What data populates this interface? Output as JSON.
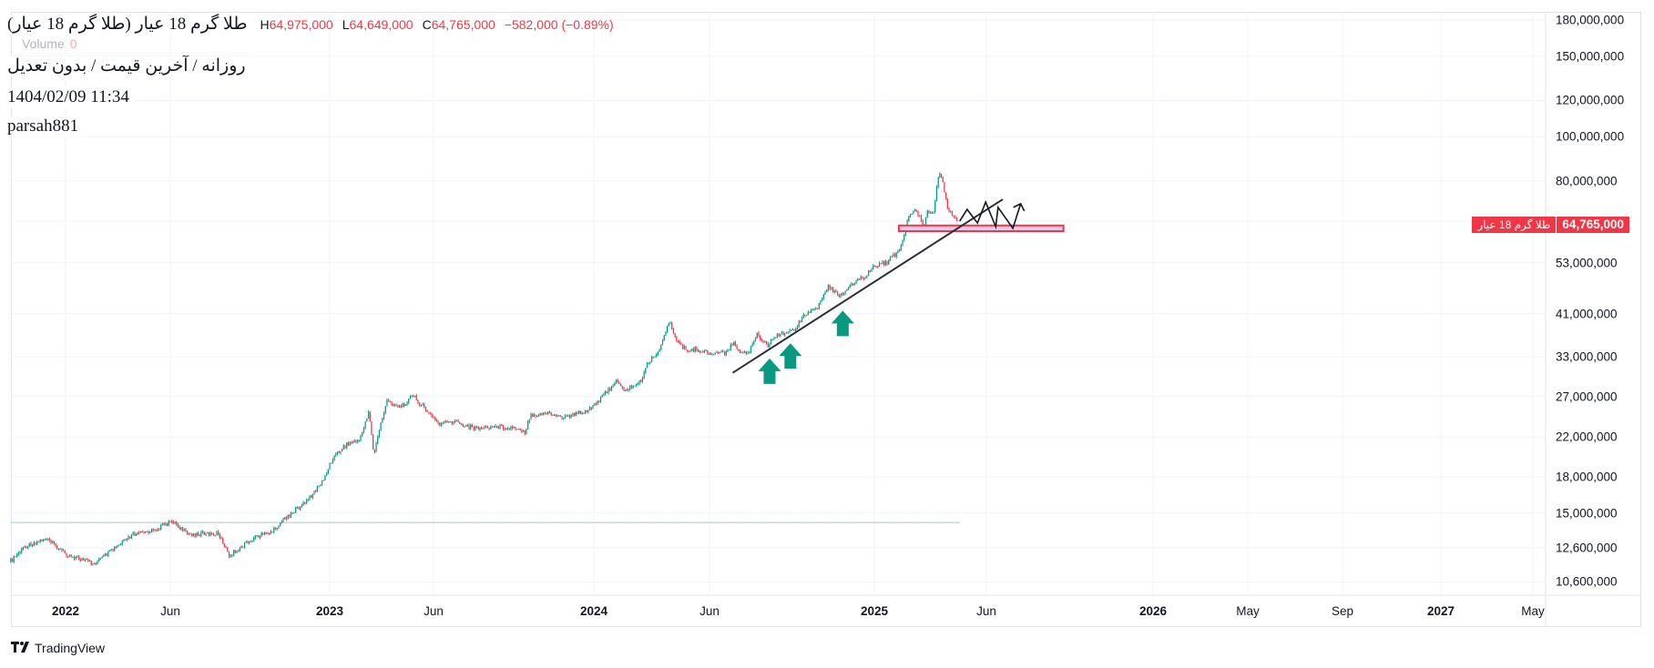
{
  "legend": {
    "title": "طلا گرم 18 عیار (طلا گرم 18 عیار)",
    "ohlc": {
      "h_label": "H",
      "h": "64,975,000",
      "l_label": "L",
      "l": "64,649,000",
      "c_label": "C",
      "c": "64,765,000",
      "change": "−582,000 (−0.89%)"
    },
    "volume_label": "Volume",
    "volume_value": "0",
    "subtitle": "روزانه / آخرین قیمت / بدون تعدیل",
    "datetime": "1404/02/09 11:34",
    "author": "parsah881"
  },
  "price_tag": {
    "name": "طلا گرم 18 عیار",
    "value": "64,765,000",
    "color": "#f23645"
  },
  "branding": {
    "text": "TradingView"
  },
  "colors": {
    "up": "#089981",
    "down": "#f23645",
    "grid": "#f0f3fa",
    "drawing": "#2a2e39",
    "zone_fill": "#e9c9ea",
    "zone_border": "#f23645"
  },
  "chart_data": {
    "type": "candlestick",
    "scale": "log",
    "ylim": [
      10600000,
      180000000
    ],
    "y_ticks": [
      "180,000,000",
      "150,000,000",
      "120,000,000",
      "100,000,000",
      "80,000,000",
      "53,000,000",
      "41,000,000",
      "33,000,000",
      "27,000,000",
      "22,000,000",
      "18,000,000",
      "15,000,000",
      "12,600,000",
      "10,600,000"
    ],
    "y_tick_values": [
      180000000,
      150000000,
      120000000,
      100000000,
      80000000,
      53000000,
      41000000,
      33000000,
      27000000,
      22000000,
      18000000,
      15000000,
      12600000,
      10600000
    ],
    "x_ticks": [
      {
        "label": "2022",
        "date": "2022-01-01",
        "year": true
      },
      {
        "label": "Jun",
        "date": "2022-06-01"
      },
      {
        "label": "2023",
        "date": "2023-01-01",
        "year": true
      },
      {
        "label": "Jun",
        "date": "2023-06-01"
      },
      {
        "label": "2024",
        "date": "2024-01-01",
        "year": true
      },
      {
        "label": "Jun",
        "date": "2024-06-01"
      },
      {
        "label": "2025",
        "date": "2025-01-01",
        "year": true
      },
      {
        "label": "Jun",
        "date": "2025-06-01"
      },
      {
        "label": "2026",
        "date": "2026-01-01",
        "year": true
      },
      {
        "label": "May",
        "date": "2026-05-01"
      },
      {
        "label": "Sep",
        "date": "2026-09-01"
      },
      {
        "label": "2027",
        "date": "2027-01-01",
        "year": true
      },
      {
        "label": "May",
        "date": "2027-05-01"
      }
    ],
    "grid": true,
    "price_path": [
      [
        "2021-10-14",
        11750000
      ],
      [
        "2021-11-04",
        12700000
      ],
      [
        "2021-12-03",
        13200000
      ],
      [
        "2022-01-02",
        12200000
      ],
      [
        "2022-02-11",
        11600000
      ],
      [
        "2022-04-07",
        13400000
      ],
      [
        "2022-05-10",
        13800000
      ],
      [
        "2022-06-05",
        14400000
      ],
      [
        "2022-06-23",
        13500000
      ],
      [
        "2022-08-05",
        13500000
      ],
      [
        "2022-08-19",
        12100000
      ],
      [
        "2022-09-23",
        13300000
      ],
      [
        "2022-10-17",
        13700000
      ],
      [
        "2022-11-01",
        14600000
      ],
      [
        "2022-11-29",
        15800000
      ],
      [
        "2022-12-23",
        17600000
      ],
      [
        "2023-01-05",
        19800000
      ],
      [
        "2023-01-25",
        21200000
      ],
      [
        "2023-02-14",
        21700000
      ],
      [
        "2023-02-27",
        25200000
      ],
      [
        "2023-03-06",
        20000000
      ],
      [
        "2023-03-16",
        23500000
      ],
      [
        "2023-03-25",
        26300000
      ],
      [
        "2023-04-14",
        25600000
      ],
      [
        "2023-05-02",
        27100000
      ],
      [
        "2023-05-21",
        25200000
      ],
      [
        "2023-06-08",
        23500000
      ],
      [
        "2023-06-30",
        23800000
      ],
      [
        "2023-07-25",
        23000000
      ],
      [
        "2023-08-24",
        23200000
      ],
      [
        "2023-09-23",
        23000000
      ],
      [
        "2023-10-01",
        22500000
      ],
      [
        "2023-10-08",
        24600000
      ],
      [
        "2023-10-30",
        24800000
      ],
      [
        "2023-11-23",
        24300000
      ],
      [
        "2023-12-24",
        25200000
      ],
      [
        "2024-01-11",
        26800000
      ],
      [
        "2024-01-30",
        29200000
      ],
      [
        "2024-02-09",
        27800000
      ],
      [
        "2024-03-02",
        29000000
      ],
      [
        "2024-03-12",
        32000000
      ],
      [
        "2024-03-28",
        34300000
      ],
      [
        "2024-04-04",
        37300000
      ],
      [
        "2024-04-10",
        39400000
      ],
      [
        "2024-04-21",
        35200000
      ],
      [
        "2024-05-03",
        34000000
      ],
      [
        "2024-05-16",
        34300000
      ],
      [
        "2024-06-02",
        33500000
      ],
      [
        "2024-06-22",
        33700000
      ],
      [
        "2024-07-01",
        35400000
      ],
      [
        "2024-07-09",
        34000000
      ],
      [
        "2024-07-22",
        33700000
      ],
      [
        "2024-08-01",
        36900000
      ],
      [
        "2024-08-16",
        35000000
      ],
      [
        "2024-08-27",
        36900000
      ],
      [
        "2024-09-18",
        37600000
      ],
      [
        "2024-10-01",
        40800000
      ],
      [
        "2024-10-17",
        41800000
      ],
      [
        "2024-11-03",
        47200000
      ],
      [
        "2024-11-12",
        45200000
      ],
      [
        "2024-11-23",
        45200000
      ],
      [
        "2024-11-28",
        46400000
      ],
      [
        "2024-12-12",
        48900000
      ],
      [
        "2024-12-22",
        49600000
      ],
      [
        "2024-12-31",
        52200000
      ],
      [
        "2025-01-17",
        53000000
      ],
      [
        "2025-02-03",
        56100000
      ],
      [
        "2025-02-09",
        60000000
      ],
      [
        "2025-02-15",
        66400000
      ],
      [
        "2025-02-26",
        69000000
      ],
      [
        "2025-03-09",
        64200000
      ],
      [
        "2025-03-13",
        68300000
      ],
      [
        "2025-03-22",
        69000000
      ],
      [
        "2025-03-27",
        79500000
      ],
      [
        "2025-03-30",
        83400000
      ],
      [
        "2025-04-04",
        78800000
      ],
      [
        "2025-04-10",
        69000000
      ],
      [
        "2025-04-17",
        67200000
      ],
      [
        "2025-04-24",
        64765000
      ]
    ],
    "last_price": 64765000,
    "reference_line": {
      "price": 14300000,
      "from": "2021-10-14",
      "to": "2025-04-26"
    },
    "drawings": {
      "trend_line": [
        [
          "2024-07-01",
          30400000
        ],
        [
          "2025-06-22",
          72900000
        ]
      ],
      "support_zone": {
        "from": "2025-02-03",
        "to": "2025-09-08",
        "top": 63900000,
        "bottom": 62100000
      },
      "zigzag_projection": [
        [
          "2025-04-26",
          65300000
        ],
        [
          "2025-05-06",
          69300000
        ],
        [
          "2025-05-20",
          64700000
        ],
        [
          "2025-05-31",
          71900000
        ],
        [
          "2025-06-13",
          63500000
        ],
        [
          "2025-06-16",
          70000000
        ],
        [
          "2025-07-05",
          63000000
        ],
        [
          "2025-07-15",
          71300000
        ]
      ],
      "up_arrows": [
        [
          "2024-08-18",
          32700000
        ],
        [
          "2024-09-14",
          35300000
        ],
        [
          "2024-11-21",
          41600000
        ]
      ]
    }
  }
}
